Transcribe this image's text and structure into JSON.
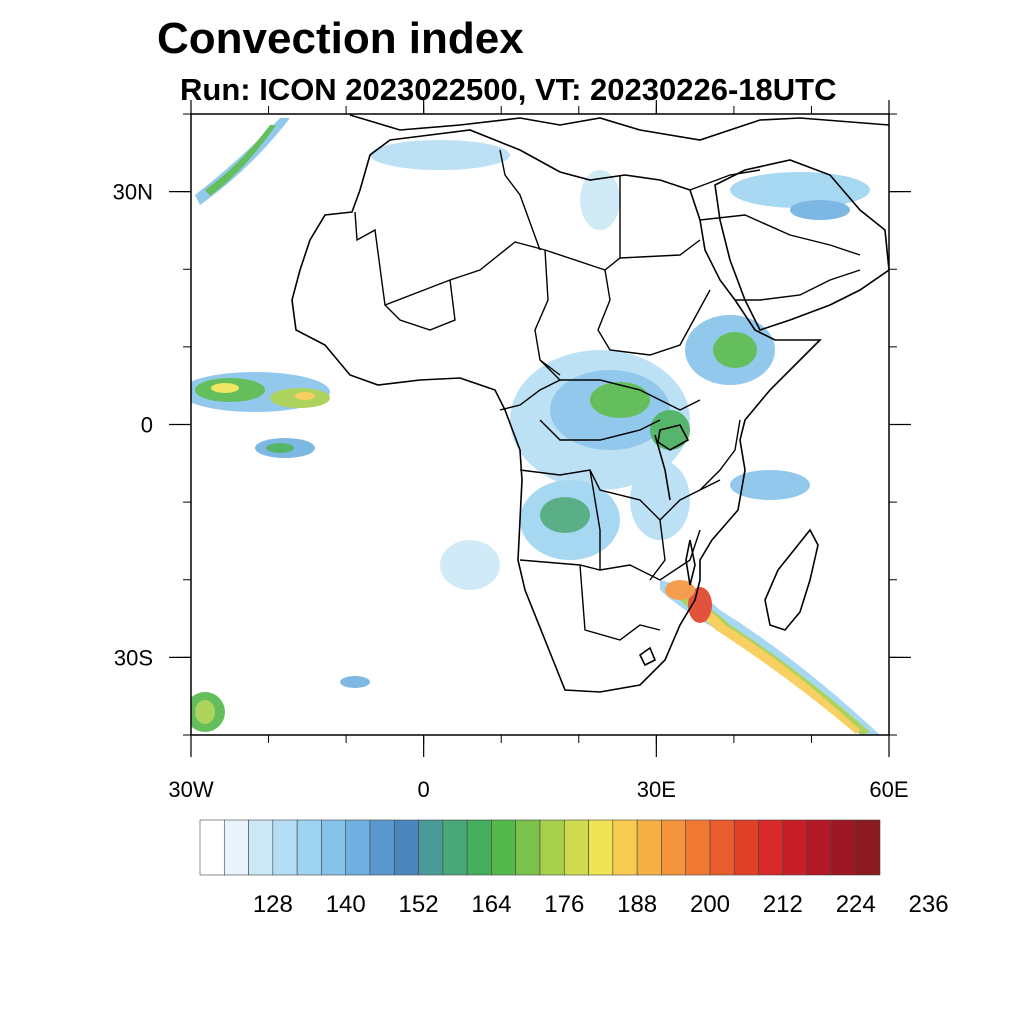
{
  "header": {
    "title": "Convection index",
    "subtitle": "Run: ICON 2023022500,  VT: 20230226-18UTC"
  },
  "map": {
    "lon_range": [
      -30,
      60
    ],
    "lat_range": [
      -40,
      40
    ],
    "x_ticks": [
      {
        "lon": -30,
        "label": "30W"
      },
      {
        "lon": 0,
        "label": "0"
      },
      {
        "lon": 30,
        "label": "30E"
      },
      {
        "lon": 60,
        "label": "60E"
      }
    ],
    "y_ticks": [
      {
        "lat": 30,
        "label": "30N"
      },
      {
        "lat": 0,
        "label": "0"
      },
      {
        "lat": -30,
        "label": "30S"
      }
    ],
    "minor_lon_step": 10,
    "minor_lat_step": 10
  },
  "colorbar": {
    "colors": [
      "#ffffff",
      "#e8f4fb",
      "#cce8f6",
      "#b5def4",
      "#9ed4f1",
      "#86c3ea",
      "#70b0e0",
      "#5b98d0",
      "#4c86bf",
      "#4a9a9a",
      "#4aa77a",
      "#45ae5c",
      "#54b84a",
      "#7cc24a",
      "#a6cf4c",
      "#cedb4f",
      "#efe453",
      "#f8cc50",
      "#f7b046",
      "#f4943c",
      "#ef7833",
      "#e85c2d",
      "#e04028",
      "#d82a28",
      "#c71e27",
      "#b21826",
      "#9c1623",
      "#8a1a1e"
    ],
    "tick_labels": [
      "128",
      "140",
      "152",
      "164",
      "176",
      "188",
      "200",
      "212",
      "224",
      "236"
    ]
  }
}
